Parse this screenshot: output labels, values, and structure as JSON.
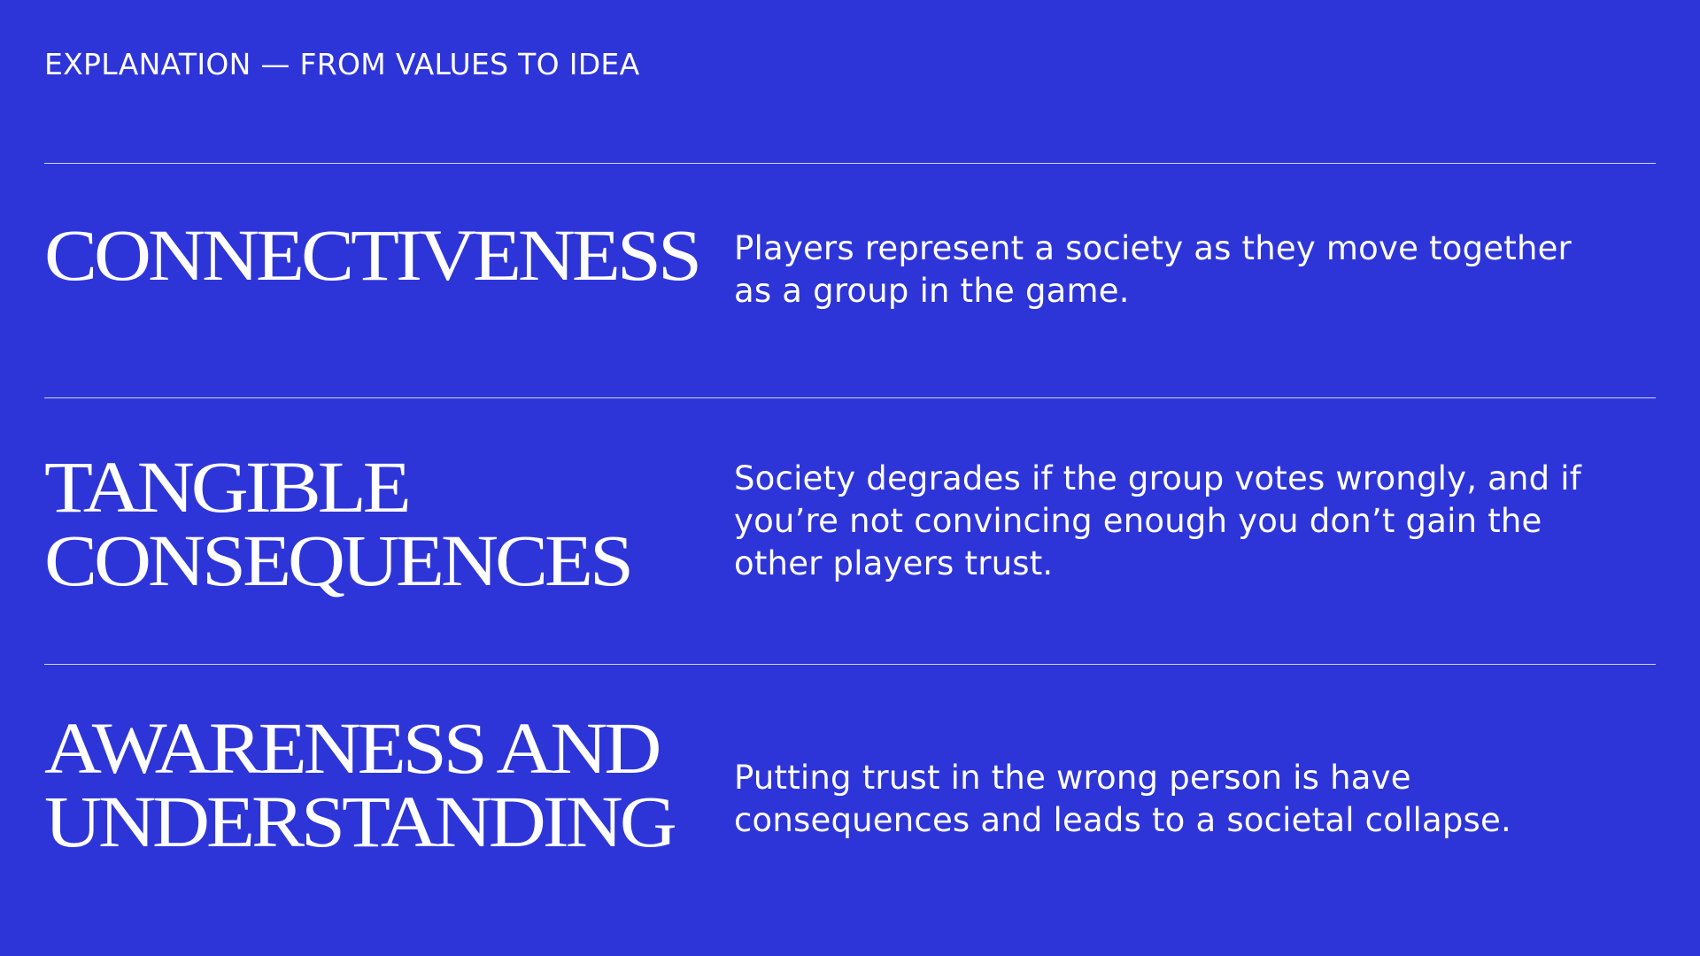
{
  "header": {
    "eyebrow": "EXPLANATION — FROM VALUES TO IDEA"
  },
  "values": [
    {
      "title": "CONNECTIVENESS",
      "title_lines": [
        "CONNECTIVENESS"
      ],
      "description": "Players represent a society as they move together as a group in the game."
    },
    {
      "title": "TANGIBLE CONSEQUENCES",
      "title_lines": [
        "TANGIBLE",
        "CONSEQUENCES"
      ],
      "description": "Society degrades if the group votes wrongly, and if you’re not convincing enough you don’t gain the other players trust."
    },
    {
      "title": "AWARENESS AND UNDERSTANDING",
      "title_lines": [
        "AWARENESS AND",
        "UNDERSTANDING"
      ],
      "description": "Putting trust in the wrong person is have consequences and leads to a societal collapse."
    }
  ],
  "colors": {
    "background": "#2e35d8",
    "text": "#ffffff"
  }
}
